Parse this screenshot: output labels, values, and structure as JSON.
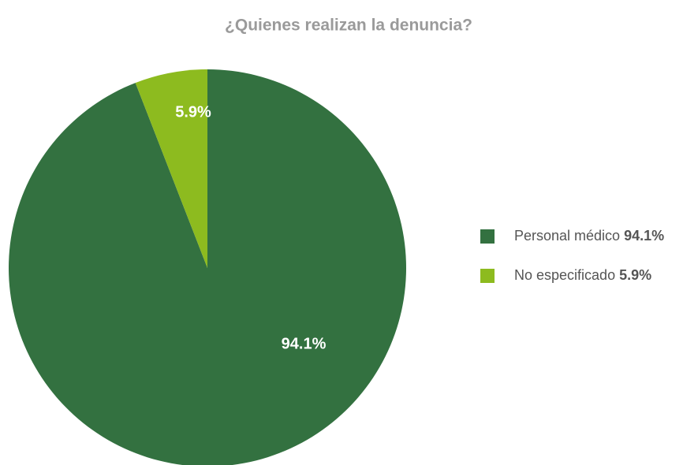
{
  "chart_data": {
    "type": "pie",
    "title": "¿Quienes realizan la denuncia?",
    "categories": [
      "Personal médico",
      "No especificado"
    ],
    "values": [
      94.1,
      5.9
    ],
    "value_labels": [
      "94.1%",
      "5.9%"
    ],
    "colors": [
      "#337140",
      "#8dbb1f"
    ],
    "legend": "right"
  }
}
